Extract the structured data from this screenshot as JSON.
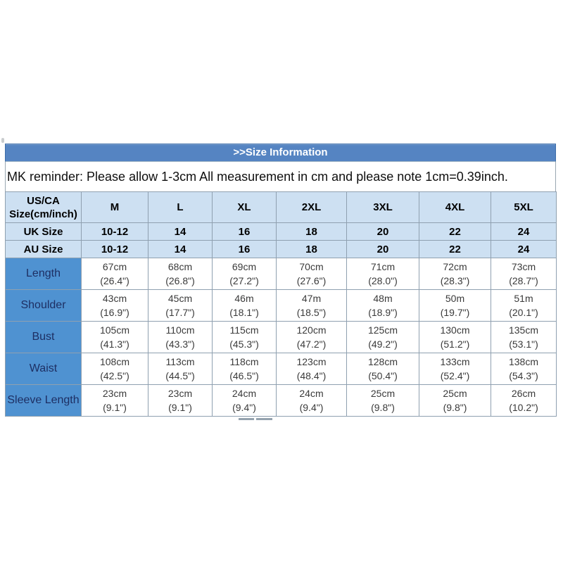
{
  "title_bar": ">>Size Information",
  "reminder": "MK reminder: Please allow 1-3cm All measurement in cm and please note 1cm=0.39inch.",
  "colors": {
    "title_bar_bg": "#5584c2",
    "title_bar_border": "#3e6da9",
    "header_row_bg": "#cde0f2",
    "row_label_bg": "#4f92d1",
    "row_label_text": "#1e2f63",
    "grid_border": "#8fa0b0",
    "title_text": "#ffffff"
  },
  "chart_data": {
    "type": "table",
    "title": ">>Size Information",
    "note": "MK reminder: Please allow 1-3cm All measurement in cm and please note 1cm=0.39inch.",
    "corner_header": "US/CA\nSize(cm/inch)",
    "size_columns": [
      "M",
      "L",
      "XL",
      "2XL",
      "3XL",
      "4XL",
      "5XL"
    ],
    "size_rows": [
      {
        "label": "UK Size",
        "values": [
          "10-12",
          "14",
          "16",
          "18",
          "20",
          "22",
          "24"
        ]
      },
      {
        "label": "AU Size",
        "values": [
          "10-12",
          "14",
          "16",
          "18",
          "20",
          "22",
          "24"
        ]
      }
    ],
    "measurement_rows": [
      {
        "label": "Length",
        "values": [
          "67cm\n(26.4\")",
          "68cm\n(26.8\")",
          "69cm\n(27.2\")",
          "70cm\n(27.6\")",
          "71cm\n(28.0\")",
          "72cm\n(28.3\")",
          "73cm\n(28.7\")"
        ]
      },
      {
        "label": "Shoulder",
        "values": [
          "43cm\n(16.9\")",
          "45cm\n(17.7\")",
          "46m\n(18.1\")",
          "47m\n(18.5\")",
          "48m\n(18.9\")",
          "50m\n(19.7\")",
          "51m\n(20.1\")"
        ]
      },
      {
        "label": "Bust",
        "values": [
          "105cm\n(41.3\")",
          "110cm\n(43.3\")",
          "115cm\n(45.3\")",
          "120cm\n(47.2\")",
          "125cm\n(49.2\")",
          "130cm\n(51.2\")",
          "135cm\n(53.1\")"
        ]
      },
      {
        "label": "Waist",
        "values": [
          "108cm\n(42.5\")",
          "113cm\n(44.5\")",
          "118cm\n(46.5\")",
          "123cm\n(48.4\")",
          "128cm\n(50.4\")",
          "133cm\n(52.4\")",
          "138cm\n(54.3\")"
        ]
      },
      {
        "label": "Sleeve Length",
        "values": [
          "23cm\n(9.1\")",
          "23cm\n(9.1\")",
          "24cm\n(9.4\")",
          "24cm\n(9.4\")",
          "25cm\n(9.8\")",
          "25cm\n(9.8\")",
          "26cm\n(10.2\")"
        ]
      }
    ]
  }
}
